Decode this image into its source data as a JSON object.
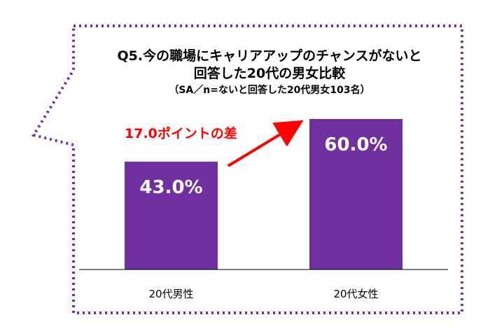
{
  "title_line1": "Q5.今の職場にキャリアアップのチャンスがないと",
  "title_line2": "回答した20代の男女比較",
  "subtitle": "（SA／n=ないと回答した20代男女103名）",
  "annotation": "17.0ポイントの差",
  "colors": {
    "bar": "#7030a0",
    "frame": "#7030a0",
    "annotation": "#ff0000",
    "bar_label": "#ffffff",
    "axis": "#000000"
  },
  "chart_data": {
    "type": "bar",
    "categories": [
      "20代男性",
      "20代女性"
    ],
    "values": [
      43.0,
      60.0
    ],
    "value_labels": [
      "43.0%",
      "60.0%"
    ],
    "ylim": [
      0,
      100
    ],
    "title": "Q5.今の職場にキャリアアップのチャンスがないと回答した20代の男女比較",
    "subtitle": "（SA／n=ないと回答した20代男女103名）",
    "xlabel": "",
    "ylabel": "",
    "grid": false,
    "legend": "none"
  }
}
